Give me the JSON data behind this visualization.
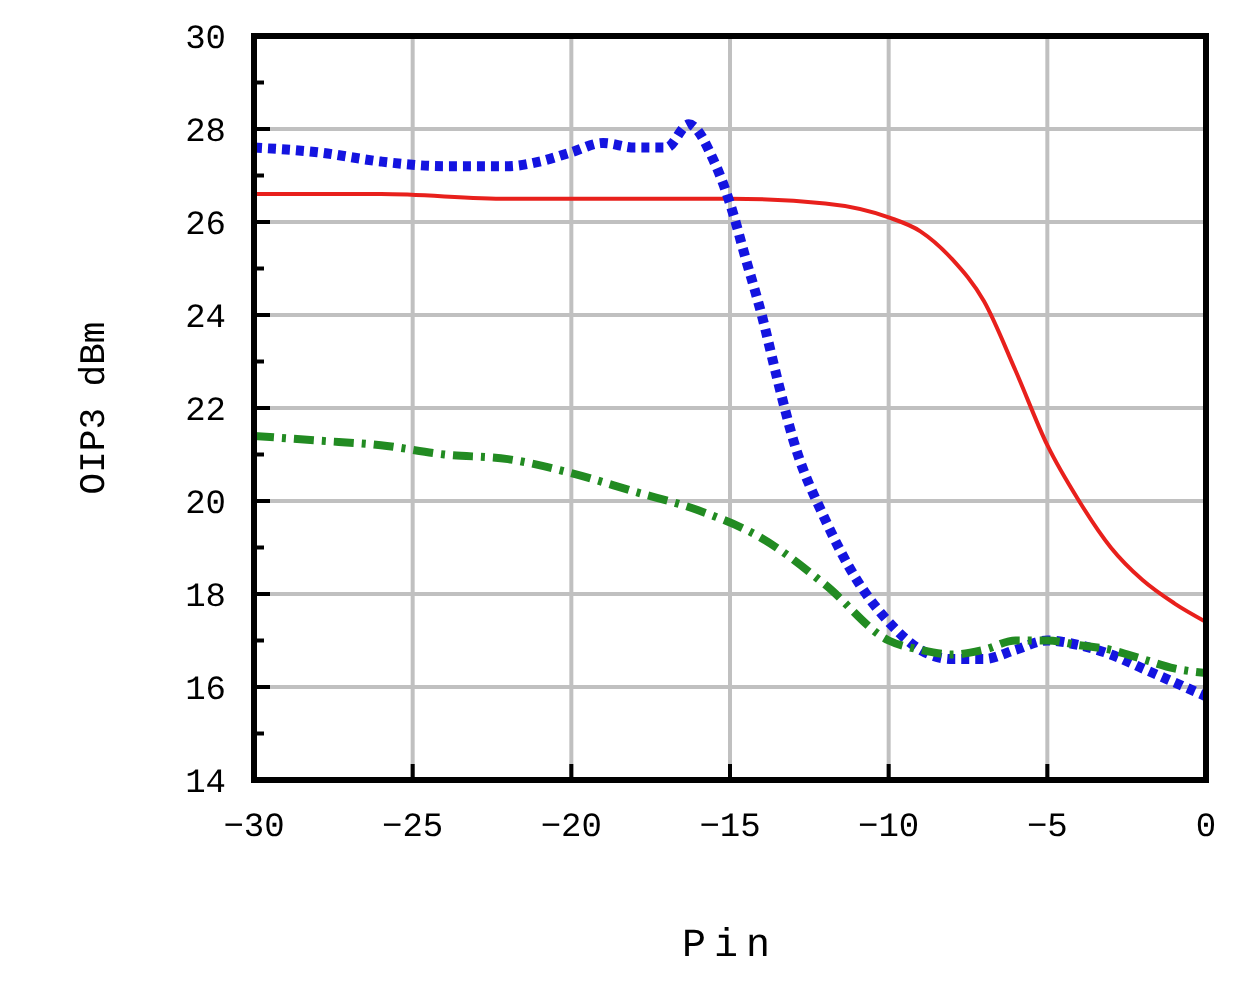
{
  "chart_data": {
    "type": "line",
    "xlabel": "Pin",
    "ylabel": "OIP3 dBm",
    "xlim": [
      -30,
      0
    ],
    "ylim": [
      14,
      30
    ],
    "xticks": [
      -30,
      -25,
      -20,
      -15,
      -10,
      -5,
      0
    ],
    "yticks": [
      14,
      16,
      18,
      20,
      22,
      24,
      26,
      28,
      30
    ],
    "grid": true,
    "series": [
      {
        "color": "#e8201c",
        "line_style": "solid",
        "x": [
          -30,
          -26,
          -22,
          -18,
          -15,
          -12,
          -10,
          -9,
          -8,
          -7,
          -6,
          -5,
          -4,
          -3,
          -2,
          -1,
          0
        ],
        "values": [
          26.6,
          26.6,
          26.5,
          26.5,
          26.5,
          26.4,
          26.1,
          25.8,
          25.2,
          24.3,
          22.8,
          21.2,
          20.0,
          19.0,
          18.3,
          17.8,
          17.4
        ]
      },
      {
        "color": "#1414e0",
        "line_style": "dotted",
        "x": [
          -30,
          -28,
          -26,
          -24,
          -22,
          -21,
          -20,
          -19,
          -18,
          -17,
          -16.3,
          -15.5,
          -15,
          -14.5,
          -14,
          -13.5,
          -13,
          -12,
          -11,
          -10,
          -9,
          -8,
          -7,
          -6,
          -5,
          -4,
          -3,
          -2,
          -1,
          0
        ],
        "values": [
          27.6,
          27.5,
          27.3,
          27.2,
          27.2,
          27.3,
          27.5,
          27.7,
          27.6,
          27.6,
          28.1,
          27.3,
          26.4,
          25.2,
          24.0,
          22.6,
          21.3,
          19.6,
          18.3,
          17.4,
          16.8,
          16.6,
          16.6,
          16.8,
          17.0,
          16.9,
          16.7,
          16.4,
          16.1,
          15.8
        ]
      },
      {
        "color": "#228b22",
        "line_style": "dashdot",
        "x": [
          -30,
          -28,
          -26,
          -24,
          -22,
          -20,
          -18,
          -16,
          -14,
          -12,
          -10,
          -9,
          -8,
          -7,
          -6,
          -5,
          -4,
          -3,
          -2,
          -1,
          0
        ],
        "values": [
          21.4,
          21.3,
          21.2,
          21.0,
          20.9,
          20.6,
          20.2,
          19.8,
          19.2,
          18.2,
          17.0,
          16.8,
          16.7,
          16.8,
          17.0,
          17.0,
          16.9,
          16.8,
          16.6,
          16.4,
          16.3
        ]
      }
    ]
  }
}
